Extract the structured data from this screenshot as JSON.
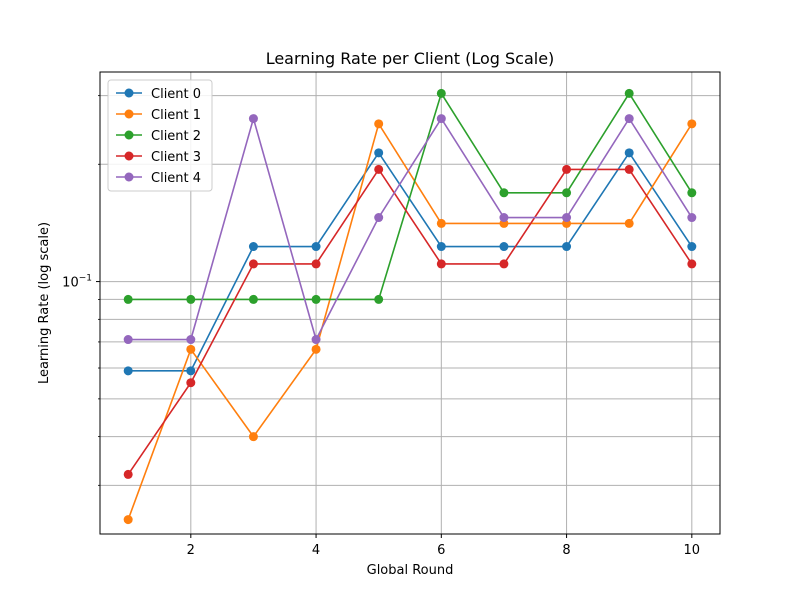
{
  "chart_data": {
    "type": "line",
    "title": "Learning Rate per Client (Log Scale)",
    "xlabel": "Global Round",
    "ylabel": "Learning Rate (log scale)",
    "x": [
      1,
      2,
      3,
      4,
      5,
      6,
      7,
      8,
      9,
      10
    ],
    "xticks": [
      2,
      4,
      6,
      8,
      10
    ],
    "xlim": [
      0.55,
      10.45
    ],
    "ylim": [
      0.0225,
      0.345
    ],
    "yscale": "log",
    "yticks_major": [
      {
        "value": 0.1,
        "label": "10",
        "exp": "−1"
      }
    ],
    "yticks_minor": [
      0.03,
      0.04,
      0.05,
      0.06,
      0.07,
      0.08,
      0.09,
      0.2,
      0.3
    ],
    "grid": true,
    "legend_position": "top-left",
    "series": [
      {
        "name": "Client 0",
        "color": "#1f77b4",
        "values": [
          0.059,
          0.059,
          0.123,
          0.123,
          0.214,
          0.123,
          0.123,
          0.123,
          0.214,
          0.123
        ]
      },
      {
        "name": "Client 1",
        "color": "#ff7f0e",
        "values": [
          0.0245,
          0.067,
          0.04,
          0.067,
          0.254,
          0.141,
          0.141,
          0.141,
          0.141,
          0.254
        ]
      },
      {
        "name": "Client 2",
        "color": "#2ca02c",
        "values": [
          0.09,
          0.09,
          0.09,
          0.09,
          0.09,
          0.304,
          0.169,
          0.169,
          0.304,
          0.169
        ]
      },
      {
        "name": "Client 3",
        "color": "#d62728",
        "values": [
          0.032,
          0.055,
          0.111,
          0.111,
          0.194,
          0.111,
          0.111,
          0.194,
          0.194,
          0.111
        ]
      },
      {
        "name": "Client 4",
        "color": "#9467bd",
        "values": [
          0.071,
          0.071,
          0.262,
          0.071,
          0.146,
          0.262,
          0.146,
          0.146,
          0.262,
          0.146
        ]
      }
    ]
  }
}
